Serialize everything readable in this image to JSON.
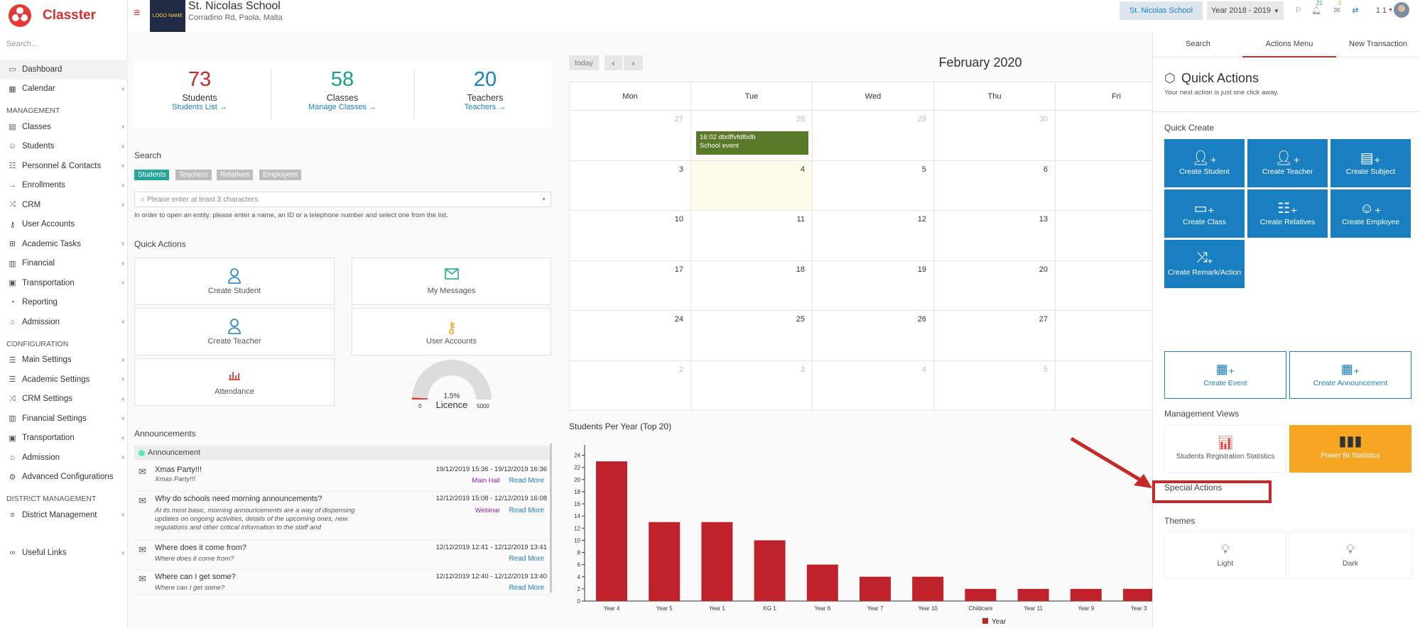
{
  "app": {
    "name": "Classter"
  },
  "sidebar": {
    "search_placeholder": "Search...",
    "items": [
      {
        "label": "Dashboard",
        "icon": "monitor-icon"
      },
      {
        "label": "Calendar",
        "icon": "calendar-icon"
      }
    ],
    "management_title": "MANAGEMENT",
    "management": [
      {
        "label": "Classes",
        "icon": "classes-icon"
      },
      {
        "label": "Students",
        "icon": "students-icon"
      },
      {
        "label": "Personnel & Contacts",
        "icon": "personnel-icon"
      },
      {
        "label": "Enrollments",
        "icon": "enrollments-icon"
      },
      {
        "label": "CRM",
        "icon": "crm-icon"
      },
      {
        "label": "User Accounts",
        "icon": "key-icon"
      },
      {
        "label": "Academic Tasks",
        "icon": "tasks-icon"
      },
      {
        "label": "Financial",
        "icon": "financial-icon"
      },
      {
        "label": "Transportation",
        "icon": "bus-icon"
      },
      {
        "label": "Reporting",
        "icon": "reporting-icon"
      },
      {
        "label": "Admission",
        "icon": "admission-icon"
      }
    ],
    "configuration_title": "CONFIGURATION",
    "configuration": [
      {
        "label": "Main Settings",
        "icon": "sliders-icon"
      },
      {
        "label": "Academic Settings",
        "icon": "sliders-icon"
      },
      {
        "label": "CRM Settings",
        "icon": "crm-icon"
      },
      {
        "label": "Financial Settings",
        "icon": "financial-icon"
      },
      {
        "label": "Transportation",
        "icon": "bus-icon"
      },
      {
        "label": "Admission",
        "icon": "admission-icon"
      },
      {
        "label": "Advanced Configurations",
        "icon": "gear-icon"
      }
    ],
    "district_title": "DISTRICT MANAGEMENT",
    "district": [
      {
        "label": "District Management",
        "icon": "list-icon"
      }
    ],
    "useful_links": "Useful Links"
  },
  "header": {
    "school_name": "St. Nicolas School",
    "school_address": "Corradino Rd, Paola, Malta",
    "school_logo_text": "LOGO NAME",
    "school_button": "St. Nicolas School",
    "year_select": "Year 2018 - 2019",
    "notif_count_1": "21",
    "notif_count_2": "0",
    "user_label": "1 1"
  },
  "stats": [
    {
      "value": "73",
      "label": "Students",
      "link": "Students List",
      "color": "#c62828"
    },
    {
      "value": "58",
      "label": "Classes",
      "link": "Manage Classes",
      "color": "#16a085"
    },
    {
      "value": "20",
      "label": "Teachers",
      "link": "Teachers",
      "color": "#1a7fc1"
    }
  ],
  "search": {
    "title": "Search",
    "filters": [
      {
        "label": "Students",
        "color": "#26a69a"
      },
      {
        "label": "Teachers",
        "color": "#bdbdbd"
      },
      {
        "label": "Relatives",
        "color": "#bdbdbd"
      },
      {
        "label": "Employees",
        "color": "#bdbdbd"
      }
    ],
    "placeholder": "Please enter at least 3 characters",
    "hint": "In order to open an entity, please enter a name, an ID or a telephone number and select one from the list."
  },
  "quick_actions": {
    "title": "Quick Actions",
    "items": [
      "Create Student",
      "My Messages",
      "Create Teacher",
      "User Accounts",
      "Attendance"
    ]
  },
  "licence": {
    "percent": "1.5%",
    "label": "Licence",
    "min": "0",
    "max": "5000",
    "fraction": 0.015
  },
  "announcements": {
    "title": "Announcements",
    "group": "Announcement",
    "items": [
      {
        "title": "Xmas Party!!!",
        "summary": "Xmas Party!!!",
        "dates": "19/12/2019 15:36 - 19/12/2019 16:36",
        "tag": "Main Hall",
        "tag_color": "#8e24aa",
        "more": "Read More"
      },
      {
        "title": "Why do schools need morning announcements?",
        "summary": "At its most basic, morning announcements are a way of dispensing updates on ongoing activities, details of the upcoming ones, new regulations and other critical information to the staff and",
        "dates": "12/12/2019 15:08 - 12/12/2019 16:08",
        "tag": "Webinar",
        "tag_color": "#8e24aa",
        "more": "Read More"
      },
      {
        "title": "Where does it come from?",
        "summary": "Where does it come from?",
        "dates": "12/12/2019 12:41 - 12/12/2019 13:41",
        "tag": "",
        "more": "Read More"
      },
      {
        "title": "Where can I get some?",
        "summary": "Where can I get some?",
        "dates": "12/12/2019 12:40 - 12/12/2019 13:40",
        "tag": "",
        "more": "Read More"
      }
    ]
  },
  "calendar": {
    "today": "today",
    "month": "February 2020",
    "days": [
      "Mon",
      "Tue",
      "Wed",
      "Thu",
      "Fri"
    ],
    "weeks": [
      [
        "27",
        "28",
        "29",
        "30",
        ""
      ],
      [
        "3",
        "4",
        "5",
        "6",
        ""
      ],
      [
        "10",
        "11",
        "12",
        "13",
        ""
      ],
      [
        "17",
        "18",
        "19",
        "20",
        ""
      ],
      [
        "24",
        "25",
        "26",
        "27",
        ""
      ],
      [
        "2",
        "3",
        "4",
        "5",
        ""
      ]
    ],
    "event": {
      "time": "16:02 dbdffvfdfbdb",
      "title": "School event"
    }
  },
  "chart_title": "Students Per Year (Top 20)",
  "chart_data": {
    "type": "bar",
    "categories": [
      "Year 4",
      "Year 5",
      "Year 1",
      "KG 1",
      "Year 6",
      "Year 7",
      "Year 10",
      "Childcare",
      "Year 11",
      "Year 9",
      "Year 3"
    ],
    "series": [
      {
        "name": "Year",
        "values": [
          23,
          13,
          13,
          10,
          6,
          4,
          4,
          2,
          2,
          2,
          2
        ]
      }
    ],
    "ylim": [
      0,
      25
    ],
    "yticks": [
      "0",
      "2",
      "4",
      "6",
      "8",
      "10",
      "12",
      "14",
      "16",
      "18",
      "20",
      "22",
      "24"
    ],
    "color": "#c0222c",
    "legend": "bottom"
  },
  "right_panel": {
    "tabs": [
      "Search",
      "Actions Menu",
      "New Transaction"
    ],
    "title": "Quick Actions",
    "subtitle": "Your next action is just one click away.",
    "quick_create": "Quick Create",
    "tiles": [
      "Create Student",
      "Create Teacher",
      "Create Subject",
      "Create Class",
      "Create Relatives",
      "Create Employee",
      "Create Remark/Action"
    ],
    "event_tiles": [
      "Create Event",
      "Create Announcement"
    ],
    "management_views": "Management Views",
    "views": [
      "Students Registration Statistics",
      "Power BI Statistics"
    ],
    "special_actions": "Special Actions",
    "themes": "Themes",
    "theme_items": [
      "Light",
      "Dark"
    ]
  }
}
